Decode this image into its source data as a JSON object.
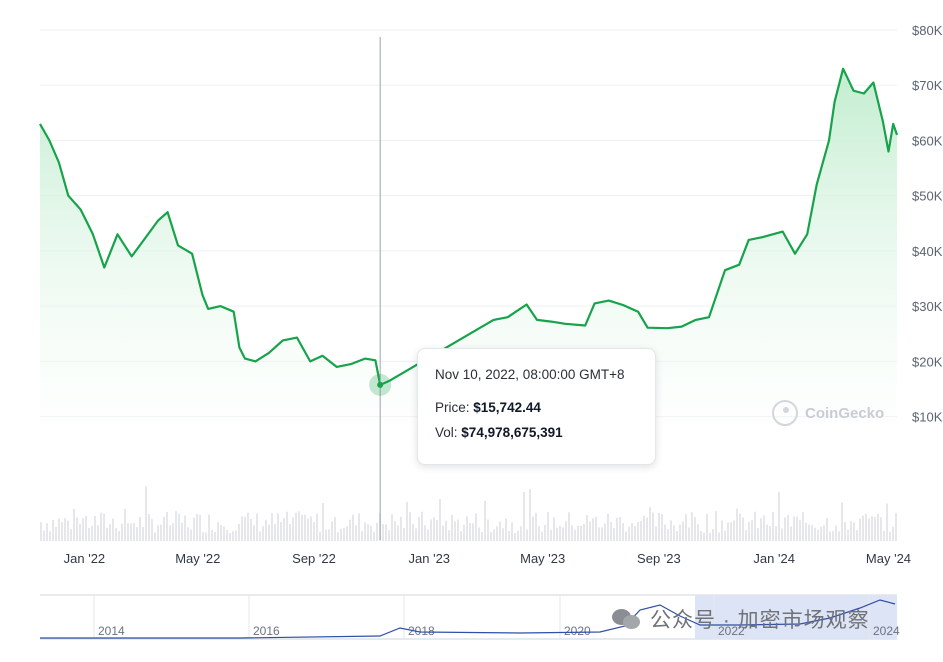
{
  "chart_data": {
    "type": "area",
    "currency_axis_labels": [
      "$10K",
      "$20K",
      "$30K",
      "$40K",
      "$50K",
      "$60K",
      "$70K",
      "$80K"
    ],
    "y_ticks": [
      10000,
      20000,
      30000,
      40000,
      50000,
      60000,
      70000,
      80000
    ],
    "ylim": [
      2500,
      80000
    ],
    "x_ticks": [
      "Jan '22",
      "May '22",
      "Sep '22",
      "Jan '23",
      "May '23",
      "Sep '23",
      "Jan '24",
      "May '24"
    ],
    "xlim": [
      "2021-11-15",
      "2024-05-10"
    ],
    "grid": true,
    "x": [
      "2021-11-15",
      "2021-11-25",
      "2021-12-05",
      "2021-12-15",
      "2021-12-28",
      "2022-01-10",
      "2022-01-22",
      "2022-02-05",
      "2022-02-20",
      "2022-03-05",
      "2022-03-20",
      "2022-03-30",
      "2022-04-10",
      "2022-04-25",
      "2022-05-06",
      "2022-05-12",
      "2022-05-25",
      "2022-06-08",
      "2022-06-14",
      "2022-06-20",
      "2022-07-01",
      "2022-07-15",
      "2022-07-30",
      "2022-08-14",
      "2022-08-28",
      "2022-09-10",
      "2022-09-25",
      "2022-10-10",
      "2022-10-25",
      "2022-11-05",
      "2022-11-10",
      "2022-11-20",
      "2023-03-10",
      "2023-03-25",
      "2023-04-14",
      "2023-04-25",
      "2023-05-10",
      "2023-05-25",
      "2023-06-15",
      "2023-06-25",
      "2023-07-10",
      "2023-07-25",
      "2023-08-10",
      "2023-08-20",
      "2023-09-10",
      "2023-09-25",
      "2023-10-10",
      "2023-10-24",
      "2023-11-10",
      "2023-11-25",
      "2023-12-05",
      "2023-12-20",
      "2024-01-10",
      "2024-01-23",
      "2024-02-05",
      "2024-02-15",
      "2024-02-28",
      "2024-03-05",
      "2024-03-14",
      "2024-03-25",
      "2024-04-05",
      "2024-04-15",
      "2024-04-25",
      "2024-05-01",
      "2024-05-06",
      "2024-05-10"
    ],
    "series": [
      {
        "values": [
          63000,
          60000,
          56000,
          50000,
          47500,
          43000,
          37000,
          43000,
          39000,
          42000,
          45500,
          47000,
          41000,
          39500,
          32000,
          29500,
          30000,
          29000,
          22500,
          20500,
          20000,
          21500,
          23800,
          24300,
          20000,
          21000,
          19000,
          19500,
          20500,
          20200,
          15742,
          16500,
          27500,
          28000,
          30300,
          27500,
          27200,
          26800,
          26500,
          30500,
          31000,
          30200,
          29000,
          26100,
          26000,
          26300,
          27500,
          28000,
          36500,
          37500,
          42000,
          42500,
          43500,
          39500,
          43000,
          52000,
          60000,
          67000,
          73000,
          69000,
          68500,
          70500,
          63500,
          58000,
          63000,
          61000
        ]
      }
    ],
    "volume_description": "faint grey volume bars along the bottom of the chart",
    "line_color": "#16a34a",
    "fill_color_top": "#c8efd4",
    "tooltip": {
      "date": "Nov 10, 2022, 08:00:00 GMT+8",
      "price_label": "Price:",
      "price_value": "$15,742.44",
      "vol_label": "Vol:",
      "vol_value": "$74,978,675,391"
    },
    "navigator": {
      "year_labels": [
        "2014",
        "2016",
        "2018",
        "2020",
        "2022",
        "2024"
      ],
      "selection_color": "#dde4f5",
      "line_color": "#2f4fa8"
    }
  },
  "watermark_text": "CoinGecko",
  "overlay_text": "公众号 · 加密市场观察"
}
